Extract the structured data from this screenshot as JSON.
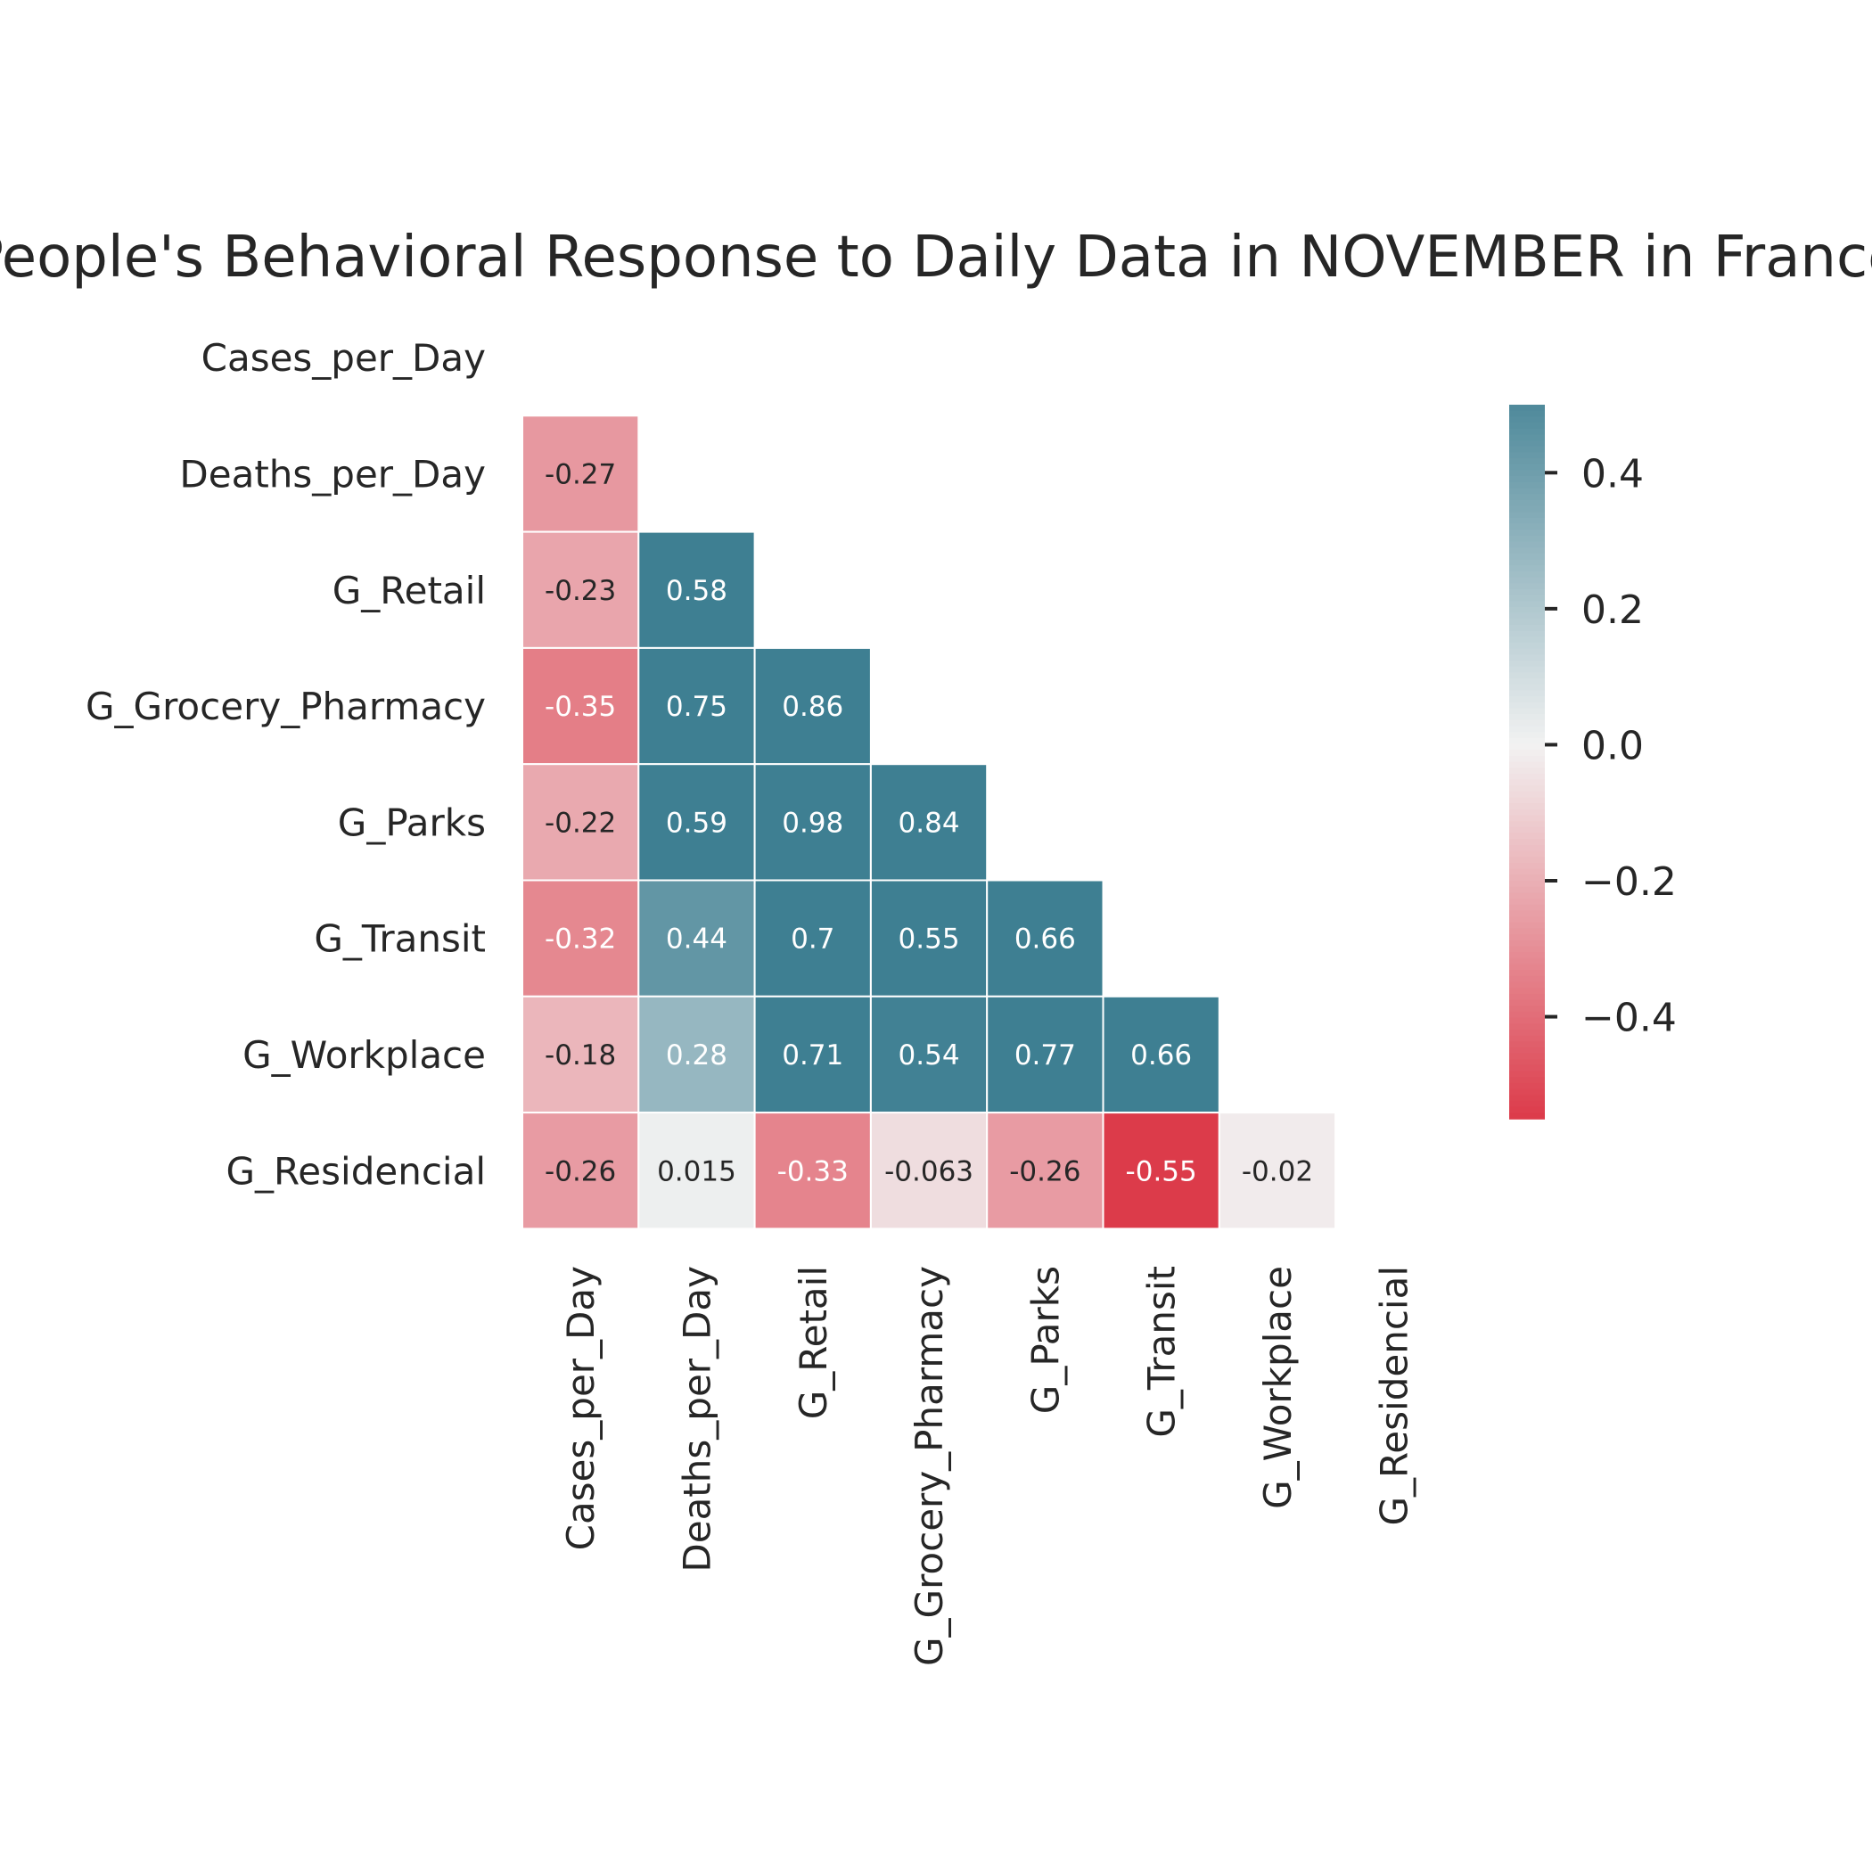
{
  "chart_data": {
    "type": "heatmap",
    "title": "People's Behavioral Response to Daily Data in NOVEMBER in France",
    "xlabel": "",
    "ylabel": "",
    "labels": [
      "Cases_per_Day",
      "Deaths_per_Day",
      "G_Retail",
      "G_Grocery_Pharmacy",
      "G_Parks",
      "G_Transit",
      "G_Workplace",
      "G_Residencial"
    ],
    "mask": "upper-triangle-including-diagonal",
    "matrix": [
      [],
      [
        -0.27
      ],
      [
        -0.23,
        0.58
      ],
      [
        -0.35,
        0.75,
        0.86
      ],
      [
        -0.22,
        0.59,
        0.98,
        0.84
      ],
      [
        -0.32,
        0.44,
        0.7,
        0.55,
        0.66
      ],
      [
        -0.18,
        0.28,
        0.71,
        0.54,
        0.77,
        0.66
      ],
      [
        -0.26,
        0.015,
        -0.33,
        -0.063,
        -0.26,
        -0.55,
        -0.02
      ]
    ],
    "annotations": [
      [],
      [
        "-0.27"
      ],
      [
        "-0.23",
        "0.58"
      ],
      [
        "-0.35",
        "0.75",
        "0.86"
      ],
      [
        "-0.22",
        "0.59",
        "0.98",
        "0.84"
      ],
      [
        "-0.32",
        "0.44",
        "0.7",
        "0.55",
        "0.66"
      ],
      [
        "-0.18",
        "0.28",
        "0.71",
        "0.54",
        "0.77",
        "0.66"
      ],
      [
        "-0.26",
        "0.015",
        "-0.33",
        "-0.063",
        "-0.26",
        "-0.55",
        "-0.02"
      ]
    ],
    "colorbar": {
      "vmin": -0.55,
      "vmax": 0.5,
      "ticks": [
        0.4,
        0.2,
        0.0,
        -0.2,
        -0.4
      ],
      "tick_labels": [
        "0.4",
        "0.2",
        "0.0",
        "−0.2",
        "−0.4"
      ]
    },
    "colors": {
      "negative": "#dc3b4a",
      "center": "#f2f2f2",
      "positive": "#3e7f92",
      "text_dark": "#262626",
      "text_light": "#ffffff",
      "cell_border": "#ffffff"
    }
  }
}
